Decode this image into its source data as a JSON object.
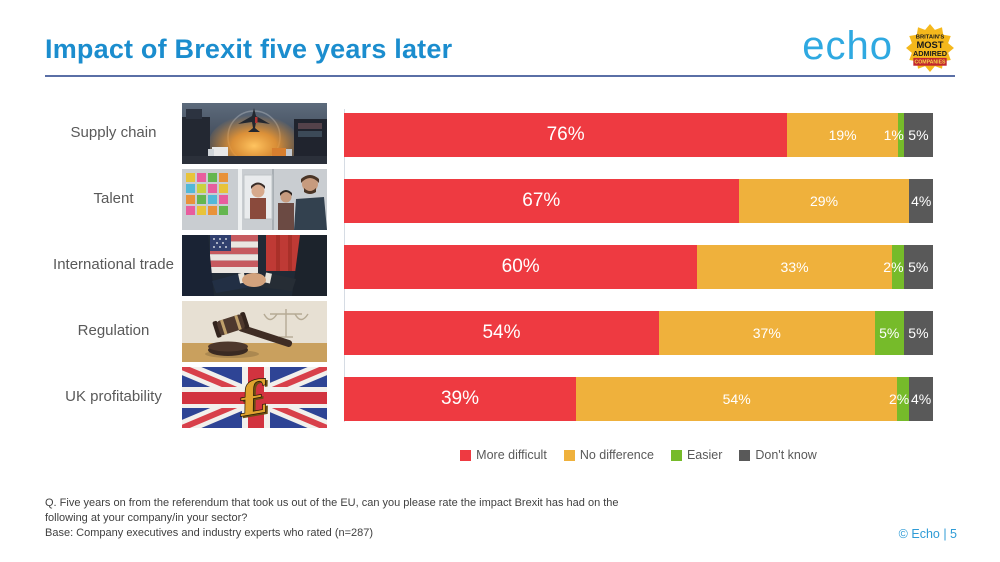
{
  "header": {
    "title": "Impact of Brexit five years later",
    "logo_text": "echo",
    "badge": {
      "lines": [
        "BRITAIN'S",
        "MOST",
        "ADMIRED",
        "COMPANIES"
      ]
    }
  },
  "chart_data": {
    "type": "bar",
    "orientation": "horizontal",
    "stacked": true,
    "value_suffix": "%",
    "xlim": [
      0,
      100
    ],
    "legend_position": "bottom",
    "categories": [
      "Supply chain",
      "Talent",
      "International trade",
      "Regulation",
      "UK profitability"
    ],
    "series": [
      {
        "name": "More difficult",
        "color": "#ee3a41",
        "values": [
          76,
          67,
          60,
          54,
          39
        ]
      },
      {
        "name": "No difference",
        "color": "#efb13c",
        "values": [
          19,
          29,
          33,
          37,
          54
        ]
      },
      {
        "name": "Easier",
        "color": "#76bb2a",
        "values": [
          1,
          0,
          2,
          5,
          2
        ]
      },
      {
        "name": "Don't know",
        "color": "#595959",
        "values": [
          5,
          4,
          5,
          5,
          4
        ]
      }
    ],
    "photos": [
      "supply-chain-logistics",
      "talent-workplace",
      "international-trade-handshake",
      "regulation-gavel",
      "uk-profitability-pound-flag"
    ]
  },
  "footer": {
    "question_lines": [
      "Q. Five years on from the referendum that took us out of the EU,  can you please rate the impact Brexit has had on the",
      "following at your company/in your sector?"
    ],
    "base": "Base: Company executives and industry experts who rated (n=287)",
    "page_ref": "© Echo  |  5"
  },
  "colors": {
    "title": "#1b8dce",
    "divider": "#5a6fa6",
    "logo": "#2fa9e1",
    "category_label": "#595959",
    "footer_text": "#404040",
    "page_ref": "#2e9bd6"
  }
}
